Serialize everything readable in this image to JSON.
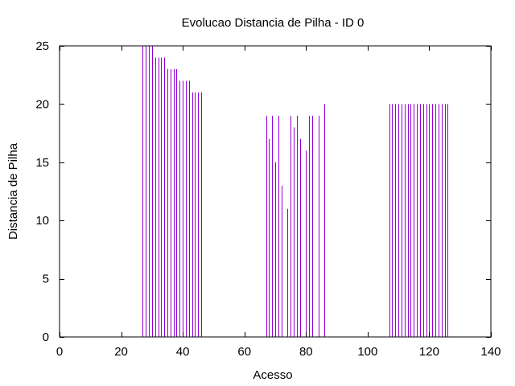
{
  "chart_data": {
    "type": "bar",
    "title": "Evolucao Distancia de Pilha - ID 0",
    "xlabel": "Acesso",
    "ylabel": "Distancia de Pilha",
    "xlim": [
      0,
      140
    ],
    "ylim": [
      0,
      25
    ],
    "xticks": [
      0,
      20,
      40,
      60,
      80,
      100,
      120,
      140
    ],
    "yticks": [
      0,
      5,
      10,
      15,
      20,
      25
    ],
    "grid": false,
    "bar_color": "#9400d3",
    "series": [
      {
        "x": [
          27,
          28,
          29,
          30,
          31,
          32,
          33,
          34,
          35,
          36,
          37,
          38,
          39,
          40,
          41,
          42,
          43,
          44,
          45,
          46,
          67,
          68,
          69,
          70,
          71,
          72,
          74,
          75,
          76,
          77,
          78,
          80,
          81,
          82,
          84,
          86,
          107,
          108,
          109,
          110,
          111,
          112,
          113,
          114,
          115,
          116,
          117,
          118,
          119,
          120,
          121,
          122,
          123,
          124,
          125,
          126
        ],
        "values": [
          25,
          25,
          25,
          25,
          24,
          24,
          24,
          24,
          23,
          23,
          23,
          23,
          22,
          22,
          22,
          22,
          21,
          21,
          21,
          21,
          19,
          17,
          19,
          15,
          19,
          13,
          11,
          19,
          18,
          19,
          17,
          16,
          19,
          19,
          19,
          20,
          20,
          20,
          20,
          20,
          20,
          20,
          20,
          20,
          20,
          20,
          20,
          20,
          20,
          20,
          20,
          20,
          20,
          20,
          20,
          20
        ]
      }
    ]
  }
}
